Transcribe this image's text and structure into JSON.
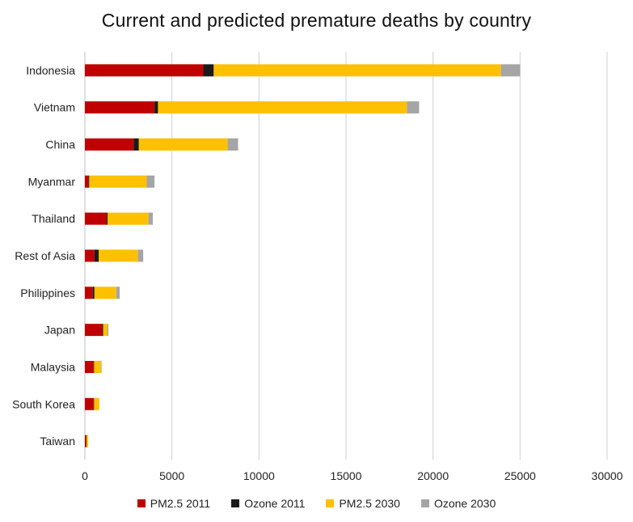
{
  "chart_data": {
    "type": "bar",
    "orientation": "horizontal",
    "stacked": true,
    "title": "Current and predicted premature deaths by country",
    "xlabel": "",
    "ylabel": "",
    "xlim": [
      0,
      30000
    ],
    "xticks": [
      "0",
      "5000",
      "10000",
      "15000",
      "20000",
      "25000",
      "30000"
    ],
    "grid": "vertical",
    "legend_position": "bottom",
    "categories": [
      "Indonesia",
      "Vietnam",
      "China",
      "Myanmar",
      "Thailand",
      "Rest of Asia",
      "Philippines",
      "Japan",
      "Malaysia",
      "South Korea",
      "Taiwan"
    ],
    "series": [
      {
        "name": "PM2.5 2011",
        "color": "#C00000",
        "values": [
          6800,
          4000,
          2800,
          200,
          1250,
          550,
          450,
          1000,
          500,
          500,
          70
        ]
      },
      {
        "name": "Ozone 2011",
        "color": "#1a1a1a",
        "values": [
          600,
          200,
          300,
          50,
          50,
          250,
          100,
          50,
          30,
          30,
          20
        ]
      },
      {
        "name": "PM2.5 2030",
        "color": "#FFC000",
        "values": [
          16500,
          14300,
          5100,
          3300,
          2350,
          2250,
          1250,
          250,
          400,
          300,
          100
        ]
      },
      {
        "name": "Ozone 2030",
        "color": "#A5A5A5",
        "values": [
          1100,
          700,
          600,
          450,
          250,
          300,
          200,
          50,
          30,
          0,
          0
        ]
      }
    ]
  }
}
